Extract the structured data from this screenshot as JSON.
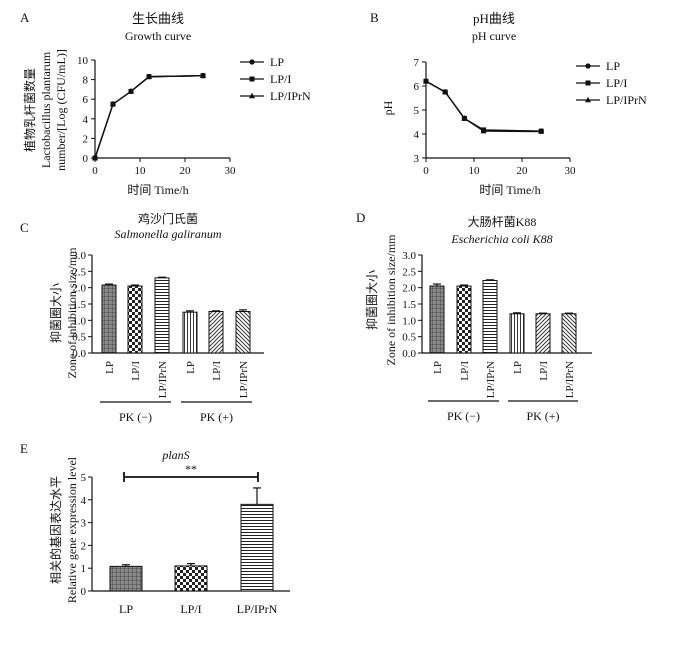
{
  "chart_data": [
    {
      "panel": "A",
      "type": "line",
      "title": "生长曲线",
      "subtitle": "Growth curve",
      "xlabel": "时间  Time/h",
      "ylabel": [
        "植物乳杆菌数量",
        "Lactobacillus plantarum",
        "number/[Log (CFU/mL)]"
      ],
      "xlim": [
        0,
        30
      ],
      "ylim": [
        0,
        10
      ],
      "xticks": [
        0,
        10,
        20,
        30
      ],
      "yticks": [
        0,
        2,
        4,
        6,
        8,
        10
      ],
      "legend": [
        "LP",
        "LP/I",
        "LP/IPrN"
      ],
      "x": [
        0,
        4,
        8,
        12,
        24
      ],
      "series": [
        {
          "name": "LP",
          "values": [
            0,
            5.5,
            6.8,
            8.3,
            8.4
          ]
        },
        {
          "name": "LP/I",
          "values": [
            0,
            5.5,
            6.8,
            8.3,
            8.4
          ]
        },
        {
          "name": "LP/IPrN",
          "values": [
            0,
            5.5,
            6.8,
            8.3,
            8.4
          ]
        }
      ]
    },
    {
      "panel": "B",
      "type": "line",
      "title": "pH曲线",
      "subtitle": "pH curve",
      "xlabel": "时间  Time/h",
      "ylabel": [
        "pH"
      ],
      "xlim": [
        0,
        30
      ],
      "ylim": [
        3,
        7
      ],
      "xticks": [
        0,
        10,
        20,
        30
      ],
      "yticks": [
        3,
        4,
        5,
        6,
        7
      ],
      "legend": [
        "LP",
        "LP/I",
        "LP/IPrN"
      ],
      "x": [
        0,
        4,
        8,
        12,
        24
      ],
      "series": [
        {
          "name": "LP",
          "values": [
            6.2,
            5.75,
            4.65,
            4.15,
            4.12
          ]
        },
        {
          "name": "LP/I",
          "values": [
            6.2,
            5.75,
            4.65,
            4.17,
            4.12
          ]
        },
        {
          "name": "LP/IPrN",
          "values": [
            6.2,
            5.75,
            4.65,
            4.12,
            4.1
          ]
        }
      ]
    },
    {
      "panel": "C",
      "type": "bar",
      "title": "鸡沙门氏菌",
      "subtitle": "Salmonella galiranum",
      "ylabel": [
        "抑菌圈大小",
        "Zone of inhibition size/mm"
      ],
      "ylim": [
        0,
        3
      ],
      "yticks": [
        "0.0",
        "0.5",
        "1.0",
        "1.5",
        "2.0",
        "2.5",
        "3.0"
      ],
      "categories": [
        "LP",
        "LP/I",
        "LP/IPrN",
        "LP",
        "LP/I",
        "LP/IPrN"
      ],
      "values": [
        2.08,
        2.05,
        2.3,
        1.25,
        1.27,
        1.27
      ],
      "errors": [
        0.03,
        0.03,
        0.02,
        0.04,
        0.02,
        0.05
      ],
      "groups": [
        "PK (−)",
        "PK (+)"
      ]
    },
    {
      "panel": "D",
      "type": "bar",
      "title": "大肠杆菌K88",
      "subtitle": "Escherichia coli K88",
      "ylabel": [
        "抑菌圈大小",
        "Zone of inhibition size/mm"
      ],
      "ylim": [
        0,
        3
      ],
      "yticks": [
        "0.0",
        "0.5",
        "1.0",
        "1.5",
        "2.0",
        "2.5",
        "3.0"
      ],
      "categories": [
        "LP",
        "LP/I",
        "LP/IPrN",
        "LP",
        "LP/I",
        "LP/IPrN"
      ],
      "values": [
        2.05,
        2.05,
        2.22,
        1.2,
        1.2,
        1.2
      ],
      "errors": [
        0.06,
        0.03,
        0.02,
        0.03,
        0.02,
        0.02
      ],
      "groups": [
        "PK (−)",
        "PK (+)"
      ]
    },
    {
      "panel": "E",
      "type": "bar",
      "title": "planS",
      "ylabel": [
        "相关的基因表达水平",
        "Relative gene expression level"
      ],
      "ylim": [
        0,
        5
      ],
      "yticks": [
        "0",
        "1",
        "2",
        "3",
        "4",
        "5"
      ],
      "categories": [
        "LP",
        "LP/I",
        "LP/IPrN"
      ],
      "values": [
        1.08,
        1.1,
        3.8
      ],
      "errors": [
        0.07,
        0.1,
        0.72
      ],
      "significance": "**"
    }
  ]
}
